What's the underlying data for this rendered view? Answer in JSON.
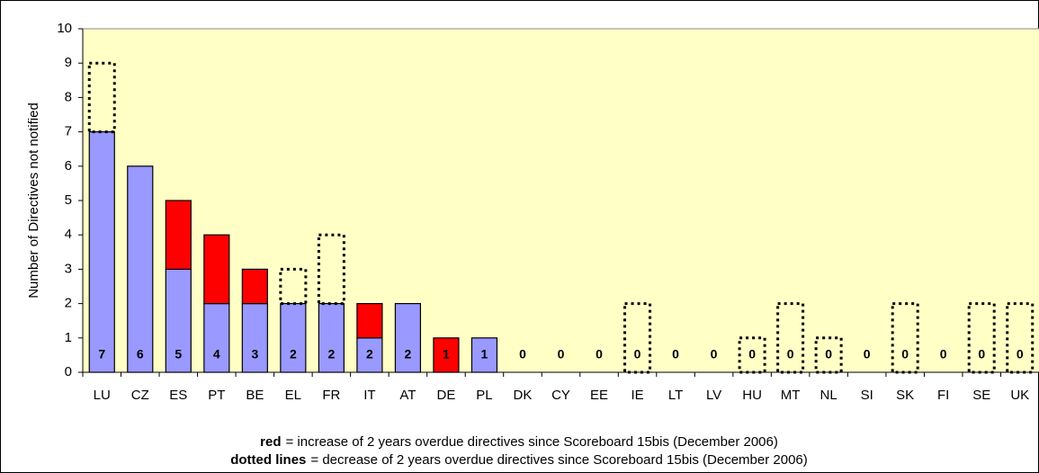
{
  "chart_data": {
    "type": "stacked-bar",
    "y_label": "Number of Directives not notified",
    "categories": [
      "LU",
      "CZ",
      "ES",
      "PT",
      "BE",
      "EL",
      "FR",
      "IT",
      "AT",
      "DE",
      "PL",
      "DK",
      "CY",
      "EE",
      "IE",
      "LT",
      "LV",
      "HU",
      "MT",
      "NL",
      "SI",
      "SK",
      "FI",
      "SE",
      "UK"
    ],
    "series": [
      {
        "color": "#9999ff",
        "style": "solid",
        "values": [
          7,
          6,
          3,
          2,
          2,
          2,
          2,
          1,
          2,
          0,
          1,
          0,
          0,
          0,
          0,
          0,
          0,
          0,
          0,
          0,
          0,
          0,
          0,
          0,
          0
        ]
      },
      {
        "color": "#ff0000",
        "style": "solid",
        "values": [
          0,
          0,
          2,
          2,
          1,
          0,
          0,
          1,
          0,
          1,
          0,
          0,
          0,
          0,
          0,
          0,
          0,
          0,
          0,
          0,
          0,
          0,
          0,
          0,
          0
        ]
      },
      {
        "color": "none",
        "style": "dotted",
        "values": [
          2,
          0,
          0,
          0,
          0,
          1,
          2,
          0,
          0,
          0,
          0,
          0,
          0,
          0,
          2,
          0,
          0,
          1,
          2,
          1,
          0,
          2,
          0,
          2,
          2
        ]
      }
    ],
    "value_labels": [
      "7",
      "6",
      "5",
      "4",
      "3",
      "2",
      "2",
      "2",
      "2",
      "1",
      "1",
      "0",
      "0",
      "0",
      "0",
      "0",
      "0",
      "0",
      "0",
      "0",
      "0",
      "0",
      "0",
      "0",
      "0"
    ],
    "ylim": [
      0,
      10
    ],
    "yticks": [
      0,
      1,
      2,
      3,
      4,
      5,
      6,
      7,
      8,
      9,
      10
    ],
    "background": "#ffffc6",
    "grid": false,
    "notes": [
      {
        "bold": "red",
        "text": "= increase of 2 years overdue directives since Scoreboard 15bis (December 2006)"
      },
      {
        "bold": "dotted lines",
        "text": "= decrease of 2 years overdue directives since Scoreboard 15bis (December 2006)"
      }
    ]
  }
}
